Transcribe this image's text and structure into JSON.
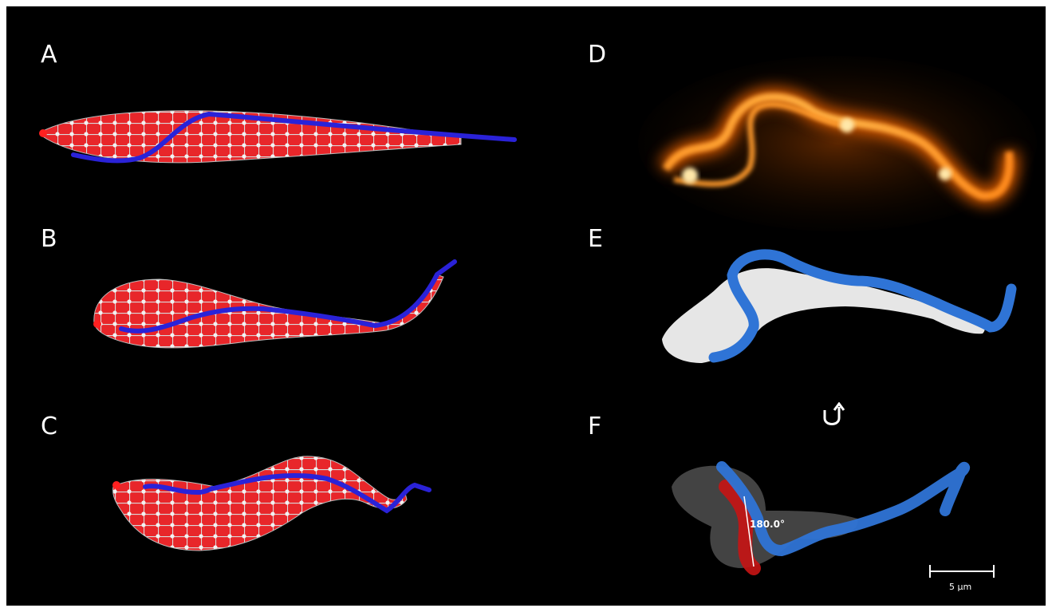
{
  "panels": [
    {
      "id": "A",
      "label": "A"
    },
    {
      "id": "B",
      "label": "B"
    },
    {
      "id": "C",
      "label": "C"
    },
    {
      "id": "D",
      "label": "D"
    },
    {
      "id": "E",
      "label": "E"
    },
    {
      "id": "F",
      "label": "F"
    }
  ],
  "annotations": {
    "angle": "180.0°",
    "scale_bar": "5 µm"
  },
  "icons": {
    "rotation": "rotate-arrow-icon"
  },
  "colors": {
    "background": "#000000",
    "cell_mesh": "#e8262a",
    "mesh_nodes": "#cfcfcf",
    "flagellum_dark_blue": "#2a22d8",
    "flagellum_light_blue": "#2f74d6",
    "surface_white": "#e6e6e6",
    "surface_gray": "#4a4a4a",
    "fluorescence_orange": "#ff7a14",
    "fluorescence_yellow": "#ffe7a8",
    "highlight_red": "#c81414"
  }
}
